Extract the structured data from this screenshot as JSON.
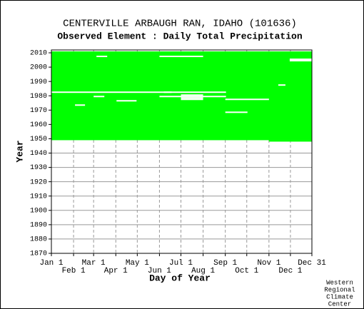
{
  "chart_data": {
    "type": "coverage",
    "title": "CENTERVILLE ARBAUGH RAN, IDAHO   (101636)",
    "subtitle": "Observed Element : Daily Total Precipitation",
    "x_label": "Day of Year",
    "y_label": "Year",
    "footer": [
      "Western",
      "Regional",
      "Climate",
      "Center"
    ],
    "color": "#00ff00",
    "gap_color": "#ffffff",
    "xlim": [
      1,
      365
    ],
    "ylim": [
      1870,
      2012
    ],
    "xticks": [
      {
        "value": 1,
        "label": "Jan 1"
      },
      {
        "value": 32,
        "label": "Feb 1"
      },
      {
        "value": 60,
        "label": "Mar 1"
      },
      {
        "value": 91,
        "label": "Apr 1"
      },
      {
        "value": 121,
        "label": "May 1"
      },
      {
        "value": 152,
        "label": "Jun 1"
      },
      {
        "value": 182,
        "label": "Jul 1"
      },
      {
        "value": 213,
        "label": "Aug 1"
      },
      {
        "value": 244,
        "label": "Sep 1"
      },
      {
        "value": 274,
        "label": "Oct 1"
      },
      {
        "value": 305,
        "label": "Nov 1"
      },
      {
        "value": 335,
        "label": "Dec 1"
      },
      {
        "value": 365,
        "label": "Dec 31"
      }
    ],
    "yticks": [
      1870,
      1880,
      1890,
      1900,
      1910,
      1920,
      1930,
      1940,
      1950,
      1960,
      1970,
      1980,
      1990,
      2000,
      2010
    ],
    "periods": [
      {
        "start_year": 1949,
        "end_year": 2010,
        "start_day": 1,
        "end_day": 365
      },
      {
        "start_year": 1948,
        "end_year": 1948,
        "start_day": 305,
        "end_day": 365
      }
    ],
    "gaps": [
      {
        "year": 1982,
        "start_day": 1,
        "end_day": 244
      },
      {
        "year": 1973,
        "start_day": 34,
        "end_day": 47
      },
      {
        "year": 1979,
        "start_day": 60,
        "end_day": 74
      },
      {
        "year": 2007,
        "start_day": 64,
        "end_day": 78
      },
      {
        "year": 2007,
        "start_day": 152,
        "end_day": 212
      },
      {
        "year": 2005,
        "start_day": 334,
        "end_day": 365
      },
      {
        "year": 2004,
        "start_day": 334,
        "end_day": 365
      },
      {
        "year": 1976,
        "start_day": 92,
        "end_day": 119
      },
      {
        "year": 1982,
        "start_day": 158,
        "end_day": 168
      },
      {
        "year": 1980,
        "start_day": 182,
        "end_day": 212
      },
      {
        "year": 1978,
        "start_day": 182,
        "end_day": 212
      },
      {
        "year": 1977,
        "start_day": 182,
        "end_day": 212
      },
      {
        "year": 1979,
        "start_day": 152,
        "end_day": 244
      },
      {
        "year": 1977,
        "start_day": 244,
        "end_day": 304
      },
      {
        "year": 1968,
        "start_day": 244,
        "end_day": 274
      },
      {
        "year": 1987,
        "start_day": 318,
        "end_day": 327
      }
    ]
  }
}
